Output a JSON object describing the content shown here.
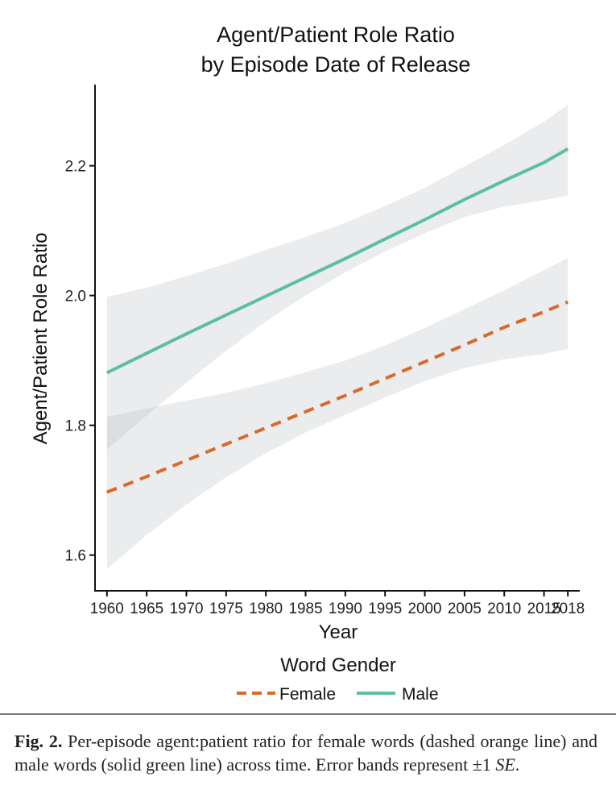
{
  "chart_data": {
    "type": "line",
    "title_line1": "Agent/Patient Role Ratio",
    "title_line2": "by Episode Date of Release",
    "xlabel": "Year",
    "ylabel": "Agent/Patient Role Ratio",
    "x_ticks": [
      "1960",
      "1965",
      "1970",
      "1975",
      "1980",
      "1985",
      "1990",
      "1995",
      "2000",
      "2005",
      "2010",
      "2015",
      "2018"
    ],
    "x_tick_values": [
      1960,
      1965,
      1970,
      1975,
      1980,
      1985,
      1990,
      1995,
      2000,
      2005,
      2010,
      2015,
      2018
    ],
    "y_ticks": [
      "1.6",
      "1.8",
      "2.0",
      "2.2"
    ],
    "y_tick_values": [
      1.6,
      1.8,
      2.0,
      2.2
    ],
    "xlim": [
      1958.5,
      2019.5
    ],
    "ylim": [
      1.545,
      2.325
    ],
    "legend_title": "Word Gender",
    "legend_position": "bottom",
    "series": [
      {
        "name": "Female",
        "color": "#d86a2b",
        "style": "dashed",
        "x": [
          1960,
          1965,
          1970,
          1975,
          1980,
          1985,
          1990,
          1995,
          2000,
          2005,
          2010,
          2015,
          2018
        ],
        "y": [
          1.697,
          1.721,
          1.746,
          1.771,
          1.796,
          1.821,
          1.846,
          1.872,
          1.898,
          1.924,
          1.951,
          1.975,
          1.99
        ],
        "lower": [
          1.578,
          1.631,
          1.678,
          1.72,
          1.757,
          1.789,
          1.816,
          1.843,
          1.868,
          1.888,
          1.902,
          1.91,
          1.918
        ],
        "upper": [
          1.813,
          1.826,
          1.838,
          1.85,
          1.865,
          1.882,
          1.9,
          1.923,
          1.95,
          1.979,
          2.008,
          2.039,
          2.058
        ]
      },
      {
        "name": "Male",
        "color": "#5cbf9f",
        "style": "solid",
        "x": [
          1960,
          1965,
          1970,
          1975,
          1980,
          1985,
          1990,
          1995,
          2000,
          2005,
          2010,
          2015,
          2018
        ],
        "y": [
          1.881,
          1.911,
          1.941,
          1.97,
          1.999,
          2.028,
          2.057,
          2.087,
          2.117,
          2.148,
          2.177,
          2.205,
          2.226
        ],
        "lower": [
          1.763,
          1.815,
          1.866,
          1.915,
          1.96,
          2.0,
          2.036,
          2.068,
          2.096,
          2.121,
          2.137,
          2.147,
          2.154
        ],
        "upper": [
          1.998,
          2.012,
          2.03,
          2.049,
          2.07,
          2.09,
          2.112,
          2.138,
          2.166,
          2.199,
          2.232,
          2.268,
          2.294
        ]
      }
    ]
  },
  "caption": {
    "label": "Fig. 2.",
    "text": " Per-episode agent:patient ratio for female words (dashed orange line) and male words (solid green line) across time. Error bands represent ±1 ",
    "se": "SE",
    "end": "."
  },
  "colors": {
    "band": "#bfc4c8"
  }
}
